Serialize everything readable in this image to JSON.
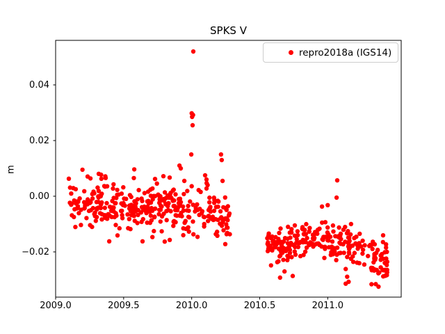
{
  "window": {
    "background": "#ffffff"
  },
  "chart_data": {
    "type": "scatter",
    "title": "SPKS V",
    "xlabel": "",
    "ylabel": "m",
    "legend": {
      "label": "repro2018a (IGS14)",
      "position": "upper right",
      "border_color": "#cccccc"
    },
    "marker": {
      "shape": "circle",
      "color": "#ff0000",
      "radius_px": 3.2
    },
    "text_color": "#000000",
    "spine_color": "#000000",
    "axis": {
      "xlim": [
        2009.0,
        2011.54
      ],
      "ylim": [
        -0.03625,
        0.056
      ],
      "grid": false,
      "x_ticks": [
        {
          "v": 2009.0,
          "label": "2009.0"
        },
        {
          "v": 2009.5,
          "label": "2009.5"
        },
        {
          "v": 2010.0,
          "label": "2010.0"
        },
        {
          "v": 2010.5,
          "label": "2010.5"
        },
        {
          "v": 2011.0,
          "label": "2011.0"
        }
      ],
      "y_ticks": [
        {
          "v": 0.04,
          "label": "0.04"
        },
        {
          "v": 0.02,
          "label": "0.02"
        },
        {
          "v": 0.0,
          "label": "0.00"
        },
        {
          "v": -0.02,
          "label": "−0.02"
        }
      ]
    },
    "description": "Daily vertical position series in two dense segments (2009.10-2010.29 near 0.00 m, 2010.55-2011.44 near -0.018 m) separated by a data gap, with high outliers up to 0.052 m just after 2010.0",
    "seed": 42,
    "clusters": [
      {
        "name": "segment-1-main",
        "count": 345,
        "x_range": [
          2009.095,
          2010.285
        ],
        "mean": [
          [
            2009.095,
            -0.0022
          ],
          [
            2009.3,
            -0.0038
          ],
          [
            2009.6,
            -0.0045
          ],
          [
            2009.85,
            -0.004
          ],
          [
            2010.05,
            -0.004
          ],
          [
            2010.16,
            -0.0065
          ],
          [
            2010.285,
            -0.009
          ]
        ],
        "sigma": 0.0036,
        "clamp": [
          -0.0142,
          0.0092
        ]
      },
      {
        "name": "segment-1-upper-fringe",
        "count": 10,
        "x_range": [
          2009.12,
          2009.58
        ],
        "y_range": [
          0.006,
          0.0098
        ]
      },
      {
        "name": "segment-1-lower-tail",
        "count": 7,
        "x_range": [
          2009.35,
          2010.24
        ],
        "y_range": [
          -0.0172,
          -0.0138
        ]
      },
      {
        "name": "segment-2-main",
        "count": 270,
        "x_range": [
          2010.553,
          2011.44
        ],
        "mean": [
          [
            2010.553,
            -0.0182
          ],
          [
            2010.75,
            -0.0168
          ],
          [
            2010.95,
            -0.0155
          ],
          [
            2011.1,
            -0.017
          ],
          [
            2011.28,
            -0.0205
          ],
          [
            2011.44,
            -0.0222
          ]
        ],
        "sigma": 0.0034,
        "clamp": [
          -0.0288,
          -0.0058
        ]
      },
      {
        "name": "segment-2-lower-tail-early",
        "count": 3,
        "x_range": [
          2010.62,
          2010.78
        ],
        "y_range": [
          -0.0298,
          -0.027
        ]
      },
      {
        "name": "segment-2-lower-tail-late",
        "count": 8,
        "x_range": [
          2011.12,
          2011.43
        ],
        "y_range": [
          -0.0325,
          -0.027
        ]
      }
    ],
    "outlier_points": [
      [
        2010.012,
        0.052
      ],
      [
        2010.0,
        0.0298
      ],
      [
        2010.003,
        0.0285
      ],
      [
        2010.01,
        0.0292
      ],
      [
        2010.007,
        0.0255
      ],
      [
        2009.997,
        0.015
      ],
      [
        2010.216,
        0.015
      ],
      [
        2010.221,
        0.013
      ],
      [
        2009.91,
        0.011
      ],
      [
        2009.92,
        0.01
      ],
      [
        2010.099,
        0.0075
      ],
      [
        2010.109,
        0.006
      ],
      [
        2010.11,
        0.0047
      ],
      [
        2010.117,
        0.004
      ],
      [
        2010.227,
        0.0055
      ],
      [
        2009.731,
        0.0062
      ],
      [
        2009.792,
        0.0072
      ],
      [
        2009.838,
        0.0067
      ],
      [
        2009.946,
        0.0055
      ],
      [
        2011.07,
        0.0057
      ],
      [
        2011.065,
        -0.0005
      ],
      [
        2011.0,
        -0.0032
      ],
      [
        2010.958,
        -0.0037
      ],
      [
        2010.262,
        -0.0132
      ],
      [
        2010.247,
        -0.0172
      ],
      [
        2009.639,
        -0.0162
      ]
    ]
  }
}
